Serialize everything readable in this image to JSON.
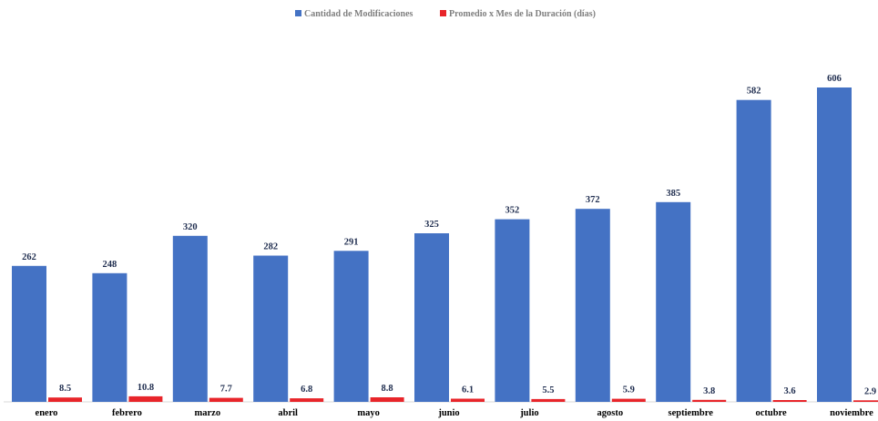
{
  "chart_data": {
    "type": "bar",
    "categories": [
      "enero",
      "febrero",
      "marzo",
      "abril",
      "mayo",
      "junio",
      "julio",
      "agosto",
      "septiembre",
      "octubre",
      "noviembre"
    ],
    "series": [
      {
        "name": "Cantidad de Modificaciones",
        "color": "#4472c4",
        "values": [
          262,
          248,
          320,
          282,
          291,
          325,
          352,
          372,
          385,
          582,
          606
        ]
      },
      {
        "name": "Promedio x Mes de la Duración (días)",
        "color": "#e8252a",
        "values": [
          8.5,
          10.8,
          7.7,
          6.8,
          8.8,
          6.1,
          5.5,
          5.9,
          3.8,
          3.6,
          2.9
        ]
      }
    ],
    "title": "",
    "xlabel": "",
    "ylabel": "",
    "ylim": [
      0,
      630
    ],
    "grid": false,
    "legend": "top-center",
    "data_labels": true
  }
}
